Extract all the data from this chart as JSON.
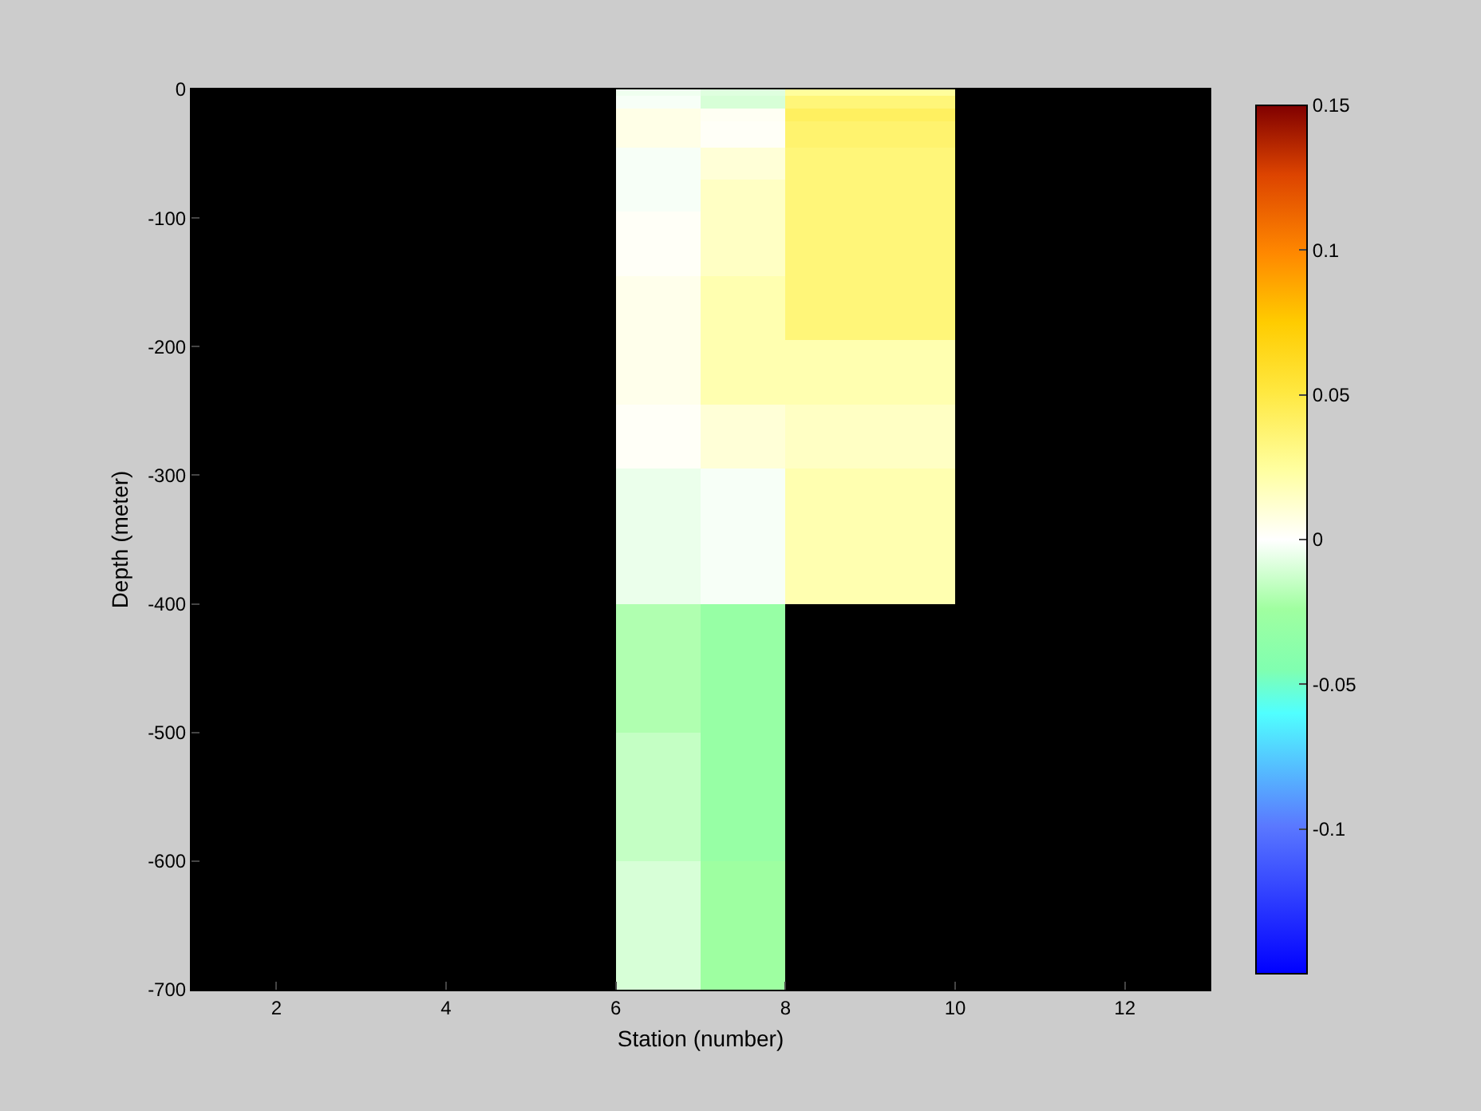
{
  "chart_data": {
    "type": "heatmap",
    "xlabel": "Station (number)",
    "ylabel": "Depth (meter)",
    "cells": [
      [
        null,
        null,
        null,
        null,
        null,
        -0.004,
        -0.008,
        0.025,
        0.025,
        null,
        null,
        null
      ],
      [
        null,
        null,
        null,
        null,
        null,
        -0.002,
        -0.01,
        0.035,
        0.035,
        null,
        null,
        null
      ],
      [
        null,
        null,
        null,
        null,
        null,
        -0.002,
        -0.01,
        0.035,
        0.035,
        null,
        null,
        null
      ],
      [
        null,
        null,
        null,
        null,
        null,
        0.006,
        0.003,
        0.042,
        0.042,
        null,
        null,
        null
      ],
      [
        null,
        null,
        null,
        null,
        null,
        0.006,
        0.003,
        0.042,
        0.042,
        null,
        null,
        null
      ],
      [
        null,
        null,
        null,
        null,
        null,
        0.006,
        0.002,
        0.038,
        0.038,
        null,
        null,
        null
      ],
      [
        null,
        null,
        null,
        null,
        null,
        0.006,
        0.002,
        0.038,
        0.038,
        null,
        null,
        null
      ],
      [
        null,
        null,
        null,
        null,
        null,
        0.006,
        0.002,
        0.038,
        0.038,
        null,
        null,
        null
      ],
      [
        null,
        null,
        null,
        null,
        null,
        0.006,
        0.002,
        0.038,
        0.038,
        null,
        null,
        null
      ],
      [
        null,
        null,
        null,
        null,
        null,
        -0.002,
        0.01,
        0.035,
        0.035,
        null,
        null,
        null
      ],
      [
        null,
        null,
        null,
        null,
        null,
        -0.002,
        0.01,
        0.035,
        0.035,
        null,
        null,
        null
      ],
      [
        null,
        null,
        null,
        null,
        null,
        -0.002,
        0.01,
        0.035,
        0.035,
        null,
        null,
        null
      ],
      [
        null,
        null,
        null,
        null,
        null,
        -0.002,
        0.01,
        0.035,
        0.035,
        null,
        null,
        null
      ],
      [
        null,
        null,
        null,
        null,
        null,
        -0.002,
        0.01,
        0.035,
        0.035,
        null,
        null,
        null
      ],
      [
        null,
        null,
        null,
        null,
        null,
        -0.002,
        0.015,
        0.035,
        0.035,
        null,
        null,
        null
      ],
      [
        null,
        null,
        null,
        null,
        null,
        -0.002,
        0.015,
        0.035,
        0.035,
        null,
        null,
        null
      ],
      [
        null,
        null,
        null,
        null,
        null,
        -0.002,
        0.015,
        0.035,
        0.035,
        null,
        null,
        null
      ],
      [
        null,
        null,
        null,
        null,
        null,
        -0.002,
        0.015,
        0.035,
        0.035,
        null,
        null,
        null
      ],
      [
        null,
        null,
        null,
        null,
        null,
        -0.002,
        0.015,
        0.035,
        0.035,
        null,
        null,
        null
      ],
      [
        null,
        null,
        null,
        null,
        null,
        0.002,
        0.015,
        0.035,
        0.035,
        null,
        null,
        null
      ],
      [
        null,
        null,
        null,
        null,
        null,
        0.002,
        0.015,
        0.035,
        0.035,
        null,
        null,
        null
      ],
      [
        null,
        null,
        null,
        null,
        null,
        0.002,
        0.015,
        0.035,
        0.035,
        null,
        null,
        null
      ],
      [
        null,
        null,
        null,
        null,
        null,
        0.002,
        0.015,
        0.035,
        0.035,
        null,
        null,
        null
      ],
      [
        null,
        null,
        null,
        null,
        null,
        0.002,
        0.015,
        0.035,
        0.035,
        null,
        null,
        null
      ],
      [
        null,
        null,
        null,
        null,
        null,
        0.002,
        0.015,
        0.035,
        0.035,
        null,
        null,
        null
      ],
      [
        null,
        null,
        null,
        null,
        null,
        0.002,
        0.015,
        0.035,
        0.035,
        null,
        null,
        null
      ],
      [
        null,
        null,
        null,
        null,
        null,
        0.002,
        0.015,
        0.035,
        0.035,
        null,
        null,
        null
      ],
      [
        null,
        null,
        null,
        null,
        null,
        0.002,
        0.015,
        0.035,
        0.035,
        null,
        null,
        null
      ],
      [
        null,
        null,
        null,
        null,
        null,
        0.002,
        0.015,
        0.035,
        0.035,
        null,
        null,
        null
      ],
      [
        null,
        null,
        null,
        null,
        null,
        0.005,
        0.02,
        0.035,
        0.035,
        null,
        null,
        null
      ],
      [
        null,
        null,
        null,
        null,
        null,
        0.005,
        0.02,
        0.035,
        0.035,
        null,
        null,
        null
      ],
      [
        null,
        null,
        null,
        null,
        null,
        0.005,
        0.02,
        0.035,
        0.035,
        null,
        null,
        null
      ],
      [
        null,
        null,
        null,
        null,
        null,
        0.005,
        0.02,
        0.035,
        0.035,
        null,
        null,
        null
      ],
      [
        null,
        null,
        null,
        null,
        null,
        0.005,
        0.02,
        0.035,
        0.035,
        null,
        null,
        null
      ],
      [
        null,
        null,
        null,
        null,
        null,
        0.005,
        0.02,
        0.035,
        0.035,
        null,
        null,
        null
      ],
      [
        null,
        null,
        null,
        null,
        null,
        0.005,
        0.02,
        0.035,
        0.035,
        null,
        null,
        null
      ],
      [
        null,
        null,
        null,
        null,
        null,
        0.005,
        0.02,
        0.035,
        0.035,
        null,
        null,
        null
      ],
      [
        null,
        null,
        null,
        null,
        null,
        0.005,
        0.02,
        0.035,
        0.035,
        null,
        null,
        null
      ],
      [
        null,
        null,
        null,
        null,
        null,
        0.005,
        0.02,
        0.035,
        0.035,
        null,
        null,
        null
      ],
      [
        null,
        null,
        null,
        null,
        null,
        0.005,
        0.02,
        0.02,
        0.02,
        null,
        null,
        null
      ],
      [
        null,
        null,
        null,
        null,
        null,
        0.005,
        0.02,
        0.02,
        0.02,
        null,
        null,
        null
      ],
      [
        null,
        null,
        null,
        null,
        null,
        0.005,
        0.02,
        0.02,
        0.02,
        null,
        null,
        null
      ],
      [
        null,
        null,
        null,
        null,
        null,
        0.005,
        0.02,
        0.02,
        0.02,
        null,
        null,
        null
      ],
      [
        null,
        null,
        null,
        null,
        null,
        0.005,
        0.02,
        0.02,
        0.02,
        null,
        null,
        null
      ],
      [
        null,
        null,
        null,
        null,
        null,
        0.005,
        0.02,
        0.02,
        0.02,
        null,
        null,
        null
      ],
      [
        null,
        null,
        null,
        null,
        null,
        0.005,
        0.02,
        0.02,
        0.02,
        null,
        null,
        null
      ],
      [
        null,
        null,
        null,
        null,
        null,
        0.005,
        0.02,
        0.02,
        0.02,
        null,
        null,
        null
      ],
      [
        null,
        null,
        null,
        null,
        null,
        0.005,
        0.02,
        0.02,
        0.02,
        null,
        null,
        null
      ],
      [
        null,
        null,
        null,
        null,
        null,
        0.005,
        0.02,
        0.02,
        0.02,
        null,
        null,
        null
      ],
      [
        null,
        null,
        null,
        null,
        null,
        0.002,
        0.01,
        0.015,
        0.015,
        null,
        null,
        null
      ],
      [
        null,
        null,
        null,
        null,
        null,
        0.002,
        0.01,
        0.015,
        0.015,
        null,
        null,
        null
      ],
      [
        null,
        null,
        null,
        null,
        null,
        0.002,
        0.01,
        0.015,
        0.015,
        null,
        null,
        null
      ],
      [
        null,
        null,
        null,
        null,
        null,
        0.002,
        0.01,
        0.015,
        0.015,
        null,
        null,
        null
      ],
      [
        null,
        null,
        null,
        null,
        null,
        0.002,
        0.01,
        0.015,
        0.015,
        null,
        null,
        null
      ],
      [
        null,
        null,
        null,
        null,
        null,
        0.002,
        0.01,
        0.015,
        0.015,
        null,
        null,
        null
      ],
      [
        null,
        null,
        null,
        null,
        null,
        0.002,
        0.01,
        0.015,
        0.015,
        null,
        null,
        null
      ],
      [
        null,
        null,
        null,
        null,
        null,
        0.002,
        0.01,
        0.015,
        0.015,
        null,
        null,
        null
      ],
      [
        null,
        null,
        null,
        null,
        null,
        0.002,
        0.01,
        0.015,
        0.015,
        null,
        null,
        null
      ],
      [
        null,
        null,
        null,
        null,
        null,
        0.002,
        0.01,
        0.015,
        0.015,
        null,
        null,
        null
      ],
      [
        null,
        null,
        null,
        null,
        null,
        -0.005,
        -0.002,
        0.02,
        0.02,
        null,
        null,
        null
      ],
      [
        null,
        null,
        null,
        null,
        null,
        -0.005,
        -0.002,
        0.02,
        0.02,
        null,
        null,
        null
      ],
      [
        null,
        null,
        null,
        null,
        null,
        -0.005,
        -0.002,
        0.02,
        0.02,
        null,
        null,
        null
      ],
      [
        null,
        null,
        null,
        null,
        null,
        -0.005,
        -0.002,
        0.02,
        0.02,
        null,
        null,
        null
      ],
      [
        null,
        null,
        null,
        null,
        null,
        -0.005,
        -0.002,
        0.02,
        0.02,
        null,
        null,
        null
      ],
      [
        null,
        null,
        null,
        null,
        null,
        -0.005,
        -0.002,
        0.02,
        0.02,
        null,
        null,
        null
      ],
      [
        null,
        null,
        null,
        null,
        null,
        -0.005,
        -0.002,
        0.02,
        0.02,
        null,
        null,
        null
      ],
      [
        null,
        null,
        null,
        null,
        null,
        -0.005,
        -0.002,
        0.02,
        0.02,
        null,
        null,
        null
      ],
      [
        null,
        null,
        null,
        null,
        null,
        -0.005,
        -0.002,
        0.02,
        0.02,
        null,
        null,
        null
      ],
      [
        null,
        null,
        null,
        null,
        null,
        -0.005,
        -0.002,
        0.02,
        0.02,
        null,
        null,
        null
      ],
      [
        null,
        null,
        null,
        null,
        null,
        -0.005,
        -0.002,
        0.02,
        0.02,
        null,
        null,
        null
      ],
      [
        null,
        null,
        null,
        null,
        null,
        -0.005,
        -0.002,
        0.02,
        0.02,
        null,
        null,
        null
      ],
      [
        null,
        null,
        null,
        null,
        null,
        -0.005,
        -0.002,
        0.02,
        0.02,
        null,
        null,
        null
      ],
      [
        null,
        null,
        null,
        null,
        null,
        -0.005,
        -0.002,
        0.02,
        0.02,
        null,
        null,
        null
      ],
      [
        null,
        null,
        null,
        null,
        null,
        -0.005,
        -0.002,
        0.02,
        0.02,
        null,
        null,
        null
      ],
      [
        null,
        null,
        null,
        null,
        null,
        -0.005,
        -0.002,
        0.02,
        0.02,
        null,
        null,
        null
      ],
      [
        null,
        null,
        null,
        null,
        null,
        -0.005,
        -0.002,
        0.02,
        0.02,
        null,
        null,
        null
      ],
      [
        null,
        null,
        null,
        null,
        null,
        -0.005,
        -0.002,
        0.02,
        0.02,
        null,
        null,
        null
      ],
      [
        null,
        null,
        null,
        null,
        null,
        -0.005,
        -0.002,
        0.02,
        0.02,
        null,
        null,
        null
      ],
      [
        null,
        null,
        null,
        null,
        null,
        -0.005,
        -0.002,
        0.02,
        0.02,
        null,
        null,
        null
      ],
      [
        null,
        null,
        null,
        null,
        null,
        -0.005,
        -0.002,
        0.02,
        0.02,
        null,
        null,
        null
      ],
      [
        null,
        null,
        null,
        null,
        null,
        -0.02,
        -0.03,
        null,
        null,
        null,
        null,
        null
      ],
      [
        null,
        null,
        null,
        null,
        null,
        -0.02,
        -0.03,
        null,
        null,
        null,
        null,
        null
      ],
      [
        null,
        null,
        null,
        null,
        null,
        -0.02,
        -0.03,
        null,
        null,
        null,
        null,
        null
      ],
      [
        null,
        null,
        null,
        null,
        null,
        -0.02,
        -0.03,
        null,
        null,
        null,
        null,
        null
      ],
      [
        null,
        null,
        null,
        null,
        null,
        -0.02,
        -0.03,
        null,
        null,
        null,
        null,
        null
      ],
      [
        null,
        null,
        null,
        null,
        null,
        -0.02,
        -0.03,
        null,
        null,
        null,
        null,
        null
      ],
      [
        null,
        null,
        null,
        null,
        null,
        -0.02,
        -0.03,
        null,
        null,
        null,
        null,
        null
      ],
      [
        null,
        null,
        null,
        null,
        null,
        -0.02,
        -0.03,
        null,
        null,
        null,
        null,
        null
      ],
      [
        null,
        null,
        null,
        null,
        null,
        -0.02,
        -0.03,
        null,
        null,
        null,
        null,
        null
      ],
      [
        null,
        null,
        null,
        null,
        null,
        -0.02,
        -0.03,
        null,
        null,
        null,
        null,
        null
      ],
      [
        null,
        null,
        null,
        null,
        null,
        -0.02,
        -0.03,
        null,
        null,
        null,
        null,
        null
      ],
      [
        null,
        null,
        null,
        null,
        null,
        -0.02,
        -0.03,
        null,
        null,
        null,
        null,
        null
      ],
      [
        null,
        null,
        null,
        null,
        null,
        -0.02,
        -0.03,
        null,
        null,
        null,
        null,
        null
      ],
      [
        null,
        null,
        null,
        null,
        null,
        -0.02,
        -0.03,
        null,
        null,
        null,
        null,
        null
      ],
      [
        null,
        null,
        null,
        null,
        null,
        -0.02,
        -0.03,
        null,
        null,
        null,
        null,
        null
      ],
      [
        null,
        null,
        null,
        null,
        null,
        -0.02,
        -0.03,
        null,
        null,
        null,
        null,
        null
      ],
      [
        null,
        null,
        null,
        null,
        null,
        -0.02,
        -0.03,
        null,
        null,
        null,
        null,
        null
      ],
      [
        null,
        null,
        null,
        null,
        null,
        -0.02,
        -0.03,
        null,
        null,
        null,
        null,
        null
      ],
      [
        null,
        null,
        null,
        null,
        null,
        -0.02,
        -0.03,
        null,
        null,
        null,
        null,
        null
      ],
      [
        null,
        null,
        null,
        null,
        null,
        -0.02,
        -0.03,
        null,
        null,
        null,
        null,
        null
      ],
      [
        null,
        null,
        null,
        null,
        null,
        -0.015,
        -0.03,
        null,
        null,
        null,
        null,
        null
      ],
      [
        null,
        null,
        null,
        null,
        null,
        -0.015,
        -0.03,
        null,
        null,
        null,
        null,
        null
      ],
      [
        null,
        null,
        null,
        null,
        null,
        -0.015,
        -0.03,
        null,
        null,
        null,
        null,
        null
      ],
      [
        null,
        null,
        null,
        null,
        null,
        -0.015,
        -0.03,
        null,
        null,
        null,
        null,
        null
      ],
      [
        null,
        null,
        null,
        null,
        null,
        -0.015,
        -0.03,
        null,
        null,
        null,
        null,
        null
      ],
      [
        null,
        null,
        null,
        null,
        null,
        -0.015,
        -0.03,
        null,
        null,
        null,
        null,
        null
      ],
      [
        null,
        null,
        null,
        null,
        null,
        -0.015,
        -0.03,
        null,
        null,
        null,
        null,
        null
      ],
      [
        null,
        null,
        null,
        null,
        null,
        -0.015,
        -0.03,
        null,
        null,
        null,
        null,
        null
      ],
      [
        null,
        null,
        null,
        null,
        null,
        -0.015,
        -0.03,
        null,
        null,
        null,
        null,
        null
      ],
      [
        null,
        null,
        null,
        null,
        null,
        -0.015,
        -0.03,
        null,
        null,
        null,
        null,
        null
      ],
      [
        null,
        null,
        null,
        null,
        null,
        -0.015,
        -0.03,
        null,
        null,
        null,
        null,
        null
      ],
      [
        null,
        null,
        null,
        null,
        null,
        -0.015,
        -0.03,
        null,
        null,
        null,
        null,
        null
      ],
      [
        null,
        null,
        null,
        null,
        null,
        -0.015,
        -0.03,
        null,
        null,
        null,
        null,
        null
      ],
      [
        null,
        null,
        null,
        null,
        null,
        -0.015,
        -0.03,
        null,
        null,
        null,
        null,
        null
      ],
      [
        null,
        null,
        null,
        null,
        null,
        -0.015,
        -0.03,
        null,
        null,
        null,
        null,
        null
      ],
      [
        null,
        null,
        null,
        null,
        null,
        -0.015,
        -0.03,
        null,
        null,
        null,
        null,
        null
      ],
      [
        null,
        null,
        null,
        null,
        null,
        -0.015,
        -0.03,
        null,
        null,
        null,
        null,
        null
      ],
      [
        null,
        null,
        null,
        null,
        null,
        -0.015,
        -0.03,
        null,
        null,
        null,
        null,
        null
      ],
      [
        null,
        null,
        null,
        null,
        null,
        -0.015,
        -0.03,
        null,
        null,
        null,
        null,
        null
      ],
      [
        null,
        null,
        null,
        null,
        null,
        -0.015,
        -0.03,
        null,
        null,
        null,
        null,
        null
      ],
      [
        null,
        null,
        null,
        null,
        null,
        -0.01,
        -0.025,
        null,
        null,
        null,
        null,
        null
      ],
      [
        null,
        null,
        null,
        null,
        null,
        -0.01,
        -0.025,
        null,
        null,
        null,
        null,
        null
      ],
      [
        null,
        null,
        null,
        null,
        null,
        -0.01,
        -0.025,
        null,
        null,
        null,
        null,
        null
      ],
      [
        null,
        null,
        null,
        null,
        null,
        -0.01,
        -0.025,
        null,
        null,
        null,
        null,
        null
      ],
      [
        null,
        null,
        null,
        null,
        null,
        -0.01,
        -0.025,
        null,
        null,
        null,
        null,
        null
      ],
      [
        null,
        null,
        null,
        null,
        null,
        -0.01,
        -0.025,
        null,
        null,
        null,
        null,
        null
      ],
      [
        null,
        null,
        null,
        null,
        null,
        -0.01,
        -0.025,
        null,
        null,
        null,
        null,
        null
      ],
      [
        null,
        null,
        null,
        null,
        null,
        -0.01,
        -0.025,
        null,
        null,
        null,
        null,
        null
      ],
      [
        null,
        null,
        null,
        null,
        null,
        -0.01,
        -0.025,
        null,
        null,
        null,
        null,
        null
      ],
      [
        null,
        null,
        null,
        null,
        null,
        -0.01,
        -0.025,
        null,
        null,
        null,
        null,
        null
      ],
      [
        null,
        null,
        null,
        null,
        null,
        -0.01,
        -0.025,
        null,
        null,
        null,
        null,
        null
      ],
      [
        null,
        null,
        null,
        null,
        null,
        -0.01,
        -0.025,
        null,
        null,
        null,
        null,
        null
      ],
      [
        null,
        null,
        null,
        null,
        null,
        -0.01,
        -0.025,
        null,
        null,
        null,
        null,
        null
      ],
      [
        null,
        null,
        null,
        null,
        null,
        -0.01,
        -0.025,
        null,
        null,
        null,
        null,
        null
      ],
      [
        null,
        null,
        null,
        null,
        null,
        -0.01,
        -0.025,
        null,
        null,
        null,
        null,
        null
      ],
      [
        null,
        null,
        null,
        null,
        null,
        -0.01,
        -0.025,
        null,
        null,
        null,
        null,
        null
      ],
      [
        null,
        null,
        null,
        null,
        null,
        -0.01,
        -0.025,
        null,
        null,
        null,
        null,
        null
      ],
      [
        null,
        null,
        null,
        null,
        null,
        -0.01,
        -0.025,
        null,
        null,
        null,
        null,
        null
      ],
      [
        null,
        null,
        null,
        null,
        null,
        -0.01,
        -0.025,
        null,
        null,
        null,
        null,
        null
      ],
      [
        null,
        null,
        null,
        null,
        null,
        -0.01,
        -0.025,
        null,
        null,
        null,
        null,
        null
      ]
    ],
    "xlim": [
      1,
      13
    ],
    "xticks": [
      2,
      4,
      6,
      8,
      10,
      12
    ],
    "ylim": [
      -700,
      0
    ],
    "yticks": [
      -700,
      -600,
      -500,
      -400,
      -300,
      -200,
      -100,
      0
    ],
    "clim": [
      -0.15,
      0.15
    ],
    "cticks": [
      -0.1,
      -0.05,
      0,
      0.05,
      0.1,
      0.15
    ],
    "grid": false
  }
}
